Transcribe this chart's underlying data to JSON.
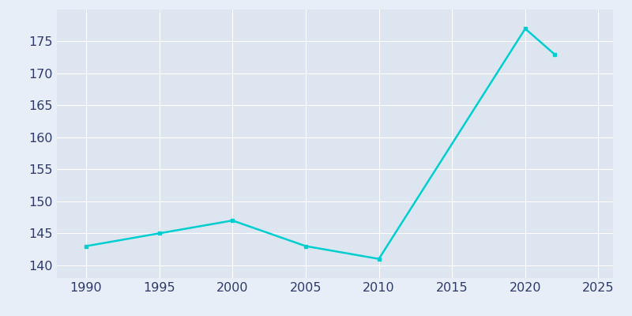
{
  "years": [
    1990,
    1995,
    2000,
    2005,
    2010,
    2020,
    2022
  ],
  "population": [
    143,
    145,
    147,
    143,
    141,
    177,
    173
  ],
  "line_color": "#00CED1",
  "line_width": 1.8,
  "marker": "s",
  "marker_size": 3,
  "background_color": "#e8eef7",
  "axes_background_color": "#dde6f0",
  "grid_color": "#ffffff",
  "xlim": [
    1988,
    2026
  ],
  "ylim": [
    138,
    180
  ],
  "xticks": [
    1990,
    1995,
    2000,
    2005,
    2010,
    2015,
    2020,
    2025
  ],
  "yticks": [
    140,
    145,
    150,
    155,
    160,
    165,
    170,
    175
  ],
  "tick_color": "#2d3a6b",
  "tick_fontsize": 11.5
}
